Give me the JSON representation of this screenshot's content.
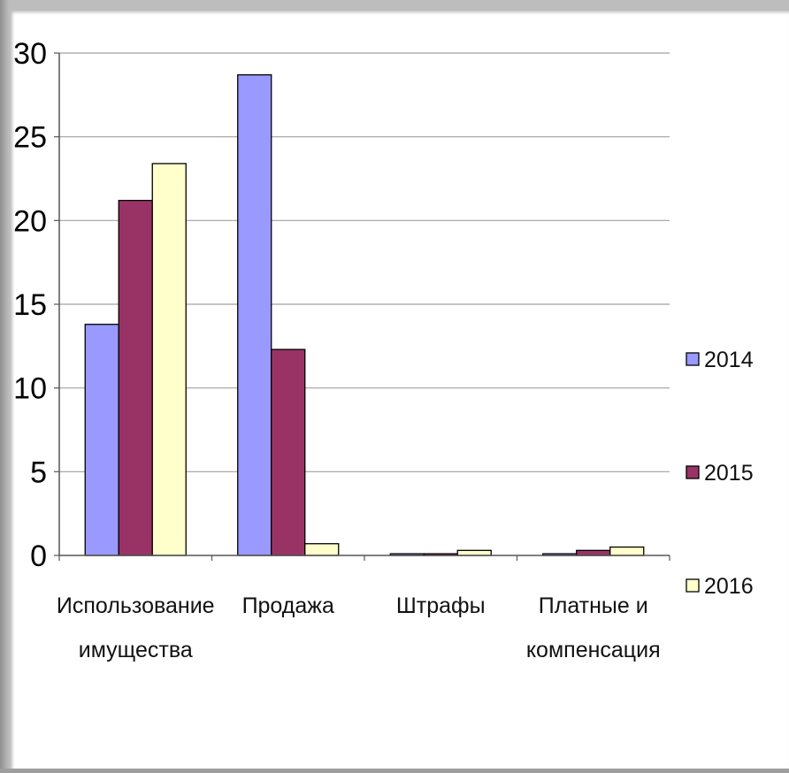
{
  "chart_data": {
    "type": "bar",
    "categories": [
      [
        "Использование",
        "имущества"
      ],
      [
        "Продажа"
      ],
      [
        "Штрафы"
      ],
      [
        "Платные и",
        "компенсация"
      ]
    ],
    "series": [
      {
        "name": "2014",
        "color": "#9999ff",
        "values": [
          13.8,
          28.7,
          0.1,
          0.1
        ]
      },
      {
        "name": "2015",
        "color": "#993366",
        "values": [
          21.2,
          12.3,
          0.1,
          0.3
        ]
      },
      {
        "name": "2016",
        "color": "#ffffcc",
        "values": [
          23.4,
          0.7,
          0.3,
          0.5
        ]
      }
    ],
    "ylim": [
      0,
      30
    ],
    "yticks": [
      "0",
      "5",
      "10",
      "15",
      "20",
      "25",
      "30"
    ],
    "grid": true,
    "legend": "right",
    "gridline_color": "#a0a0a0"
  }
}
